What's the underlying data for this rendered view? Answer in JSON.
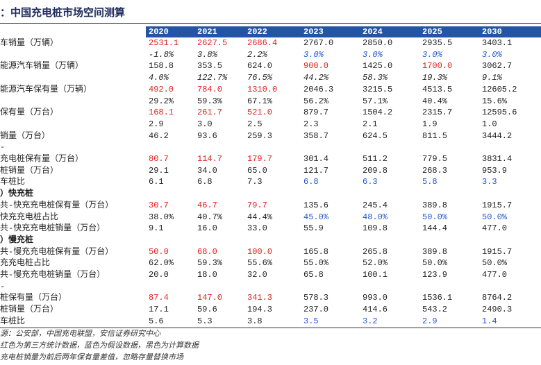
{
  "header": {
    "title": "：中国充电桩市场空间测算"
  },
  "table": {
    "columns": [
      "2020",
      "2021",
      "2022",
      "2023",
      "2024",
      "2025",
      "2030"
    ],
    "rows": [
      {
        "label": "车销量（万辆）",
        "values": [
          "2531.1",
          "2627.5",
          "2686.4",
          "2767.0",
          "2850.0",
          "2935.5",
          "3403.1"
        ],
        "colors": [
          "#e0201e",
          "#e0201e",
          "#e0201e",
          "#222222",
          "#222222",
          "#222222",
          "#222222"
        ]
      },
      {
        "italic": true,
        "values": [
          "-1.8%",
          "3.8%",
          "2.2%",
          "3.0%",
          "3.0%",
          "3.0%",
          "3.0%"
        ],
        "colors": [
          "#222222",
          "#222222",
          "#222222",
          "#2255d0",
          "#2255d0",
          "#2255d0",
          "#2255d0"
        ]
      },
      {
        "label": "能源汽车销量（万辆）",
        "values": [
          "158.8",
          "353.5",
          "624.0",
          "900.0",
          "1425.0",
          "1700.0",
          "3062.7"
        ],
        "colors": [
          "#222222",
          "#222222",
          "#222222",
          "#e0201e",
          "#222222",
          "#e0201e",
          "#222222"
        ]
      },
      {
        "italic": true,
        "values": [
          "4.0%",
          "122.7%",
          "76.5%",
          "44.2%",
          "58.3%",
          "19.3%",
          "9.1%"
        ],
        "colors": [
          "#222222",
          "#222222",
          "#222222",
          "#222222",
          "#222222",
          "#222222",
          "#222222"
        ]
      },
      {
        "label": "能源汽车保有量（万辆）",
        "values": [
          "492.0",
          "784.0",
          "1310.0",
          "2046.3",
          "3215.5",
          "4513.5",
          "12605.2"
        ],
        "colors": [
          "#e0201e",
          "#e0201e",
          "#e0201e",
          "#222222",
          "#222222",
          "#222222",
          "#222222"
        ]
      },
      {
        "values": [
          "29.2%",
          "59.3%",
          "67.1%",
          "56.2%",
          "57.1%",
          "40.4%",
          "15.6%"
        ],
        "colors": [
          "#222222",
          "#222222",
          "#222222",
          "#222222",
          "#222222",
          "#222222",
          "#222222"
        ]
      },
      {
        "label": "保有量（万台）",
        "values": [
          "168.1",
          "261.7",
          "521.0",
          "879.7",
          "1504.2",
          "2315.7",
          "12595.6"
        ],
        "colors": [
          "#e0201e",
          "#e0201e",
          "#e0201e",
          "#222222",
          "#222222",
          "#222222",
          "#222222"
        ]
      },
      {
        "values": [
          "2.9",
          "3.0",
          "2.5",
          "2.3",
          "2.1",
          "1.9",
          "1.0"
        ],
        "colors": [
          "#222222",
          "#222222",
          "#222222",
          "#222222",
          "#222222",
          "#222222",
          "#222222"
        ]
      },
      {
        "label": "销量（万台）",
        "values": [
          "46.2",
          "93.6",
          "259.3",
          "358.7",
          "624.5",
          "811.5",
          "3444.2"
        ],
        "colors": [
          "#222222",
          "#222222",
          "#222222",
          "#222222",
          "#222222",
          "#222222",
          "#222222"
        ]
      },
      {
        "label": "-"
      },
      {
        "label": "充电桩保有量（万台）",
        "values": [
          "80.7",
          "114.7",
          "179.7",
          "301.4",
          "511.2",
          "779.5",
          "3831.4"
        ],
        "colors": [
          "#e0201e",
          "#e0201e",
          "#e0201e",
          "#222222",
          "#222222",
          "#222222",
          "#222222"
        ]
      },
      {
        "label": "桩销量（万台）",
        "values": [
          "29.1",
          "34.0",
          "65.0",
          "121.7",
          "209.8",
          "268.3",
          "953.9"
        ],
        "colors": [
          "#222222",
          "#222222",
          "#222222",
          "#222222",
          "#222222",
          "#222222",
          "#222222"
        ]
      },
      {
        "label": "车桩比",
        "values": [
          "6.1",
          "6.8",
          "7.3",
          "6.8",
          "6.3",
          "5.8",
          "3.3"
        ],
        "colors": [
          "#222222",
          "#222222",
          "#222222",
          "#2255d0",
          "#2255d0",
          "#2255d0",
          "#2255d0"
        ]
      },
      {
        "label": "）快充桩",
        "bold": true
      },
      {
        "label": "共-快充充电桩保有量（万台）",
        "values": [
          "30.7",
          "46.7",
          "79.7",
          "135.6",
          "245.4",
          "389.8",
          "1915.7"
        ],
        "colors": [
          "#e0201e",
          "#e0201e",
          "#e0201e",
          "#222222",
          "#222222",
          "#222222",
          "#222222"
        ]
      },
      {
        "label": "快充充电桩占比",
        "values": [
          "38.0%",
          "40.7%",
          "44.4%",
          "45.0%",
          "48.0%",
          "50.0%",
          "50.0%"
        ],
        "colors": [
          "#222222",
          "#222222",
          "#222222",
          "#2255d0",
          "#2255d0",
          "#2255d0",
          "#2255d0"
        ]
      },
      {
        "label": "共-快充充电桩销量（万台）",
        "values": [
          "9.1",
          "16.0",
          "33.0",
          "55.9",
          "109.8",
          "144.4",
          "477.0"
        ],
        "colors": [
          "#222222",
          "#222222",
          "#222222",
          "#222222",
          "#222222",
          "#222222",
          "#222222"
        ]
      },
      {
        "label": "）慢充桩",
        "bold": true
      },
      {
        "label": "共-慢充充电桩保有量（万台）",
        "values": [
          "50.0",
          "68.0",
          "100.0",
          "165.8",
          "265.8",
          "389.8",
          "1915.7"
        ],
        "colors": [
          "#e0201e",
          "#e0201e",
          "#e0201e",
          "#222222",
          "#222222",
          "#222222",
          "#222222"
        ]
      },
      {
        "label": "充充电桩占比",
        "values": [
          "62.0%",
          "59.3%",
          "55.6%",
          "55.0%",
          "52.0%",
          "50.0%",
          "50.0%"
        ],
        "colors": [
          "#222222",
          "#222222",
          "#222222",
          "#222222",
          "#222222",
          "#222222",
          "#222222"
        ]
      },
      {
        "label": "共-慢充充电桩销量（万台）",
        "values": [
          "20.0",
          "18.0",
          "32.0",
          "65.8",
          "100.1",
          "123.9",
          "477.0"
        ],
        "colors": [
          "#222222",
          "#222222",
          "#222222",
          "#222222",
          "#222222",
          "#222222",
          "#222222"
        ]
      },
      {
        "label": "-"
      },
      {
        "label": "桩保有量（万台）",
        "values": [
          "87.4",
          "147.0",
          "341.3",
          "578.3",
          "993.0",
          "1536.1",
          "8764.2"
        ],
        "colors": [
          "#e0201e",
          "#e0201e",
          "#e0201e",
          "#222222",
          "#222222",
          "#222222",
          "#222222"
        ]
      },
      {
        "label": "桩销量（万台）",
        "values": [
          "17.1",
          "59.6",
          "194.3",
          "237.0",
          "414.6",
          "543.2",
          "2490.3"
        ],
        "colors": [
          "#222222",
          "#222222",
          "#222222",
          "#222222",
          "#222222",
          "#222222",
          "#222222"
        ]
      },
      {
        "label": "车桩比",
        "values": [
          "5.6",
          "5.3",
          "3.8",
          "3.5",
          "3.2",
          "2.9",
          "1.4"
        ],
        "colors": [
          "#222222",
          "#222222",
          "#222222",
          "#2255d0",
          "#2255d0",
          "#2255d0",
          "#2255d0"
        ]
      }
    ]
  },
  "footer": {
    "notes": [
      "源：公安部，中国充电联盟，安信证券研究中心",
      "红色为第三方统计数据，蓝色为假设数据，黑色为计算数据",
      "充电桩销量为前后两年保有量差值，忽略存量替换市场"
    ]
  }
}
